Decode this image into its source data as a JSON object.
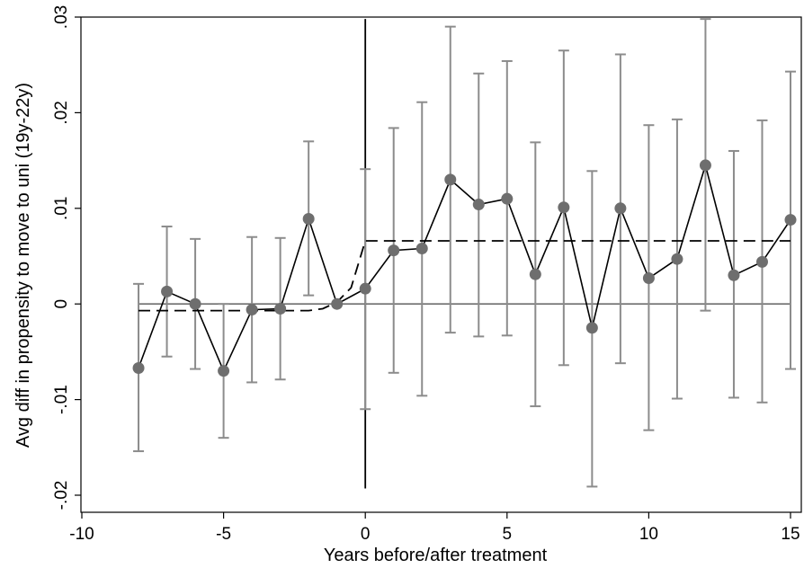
{
  "chart_data": {
    "type": "scatter",
    "title": "",
    "xlabel": "Years before/after treatment",
    "ylabel": "Avg diff in propensity to move to uni (19y-22y)",
    "xlim": [
      -10,
      15
    ],
    "ylim": [
      -0.02,
      0.03
    ],
    "xticks": [
      -10,
      -5,
      0,
      5,
      10,
      15
    ],
    "xtick_labels": [
      "-10",
      "-5",
      "0",
      "5",
      "10",
      "15"
    ],
    "yticks": [
      -0.02,
      -0.01,
      0,
      0.01,
      0.02,
      0.03
    ],
    "ytick_labels": [
      "-.02",
      "-.01",
      "0",
      ".01",
      ".02",
      ".03"
    ],
    "grid": false,
    "colors": {
      "points": "#6e6e6e",
      "connecting_line": "#000000",
      "error_bars": "#8c8c8c",
      "zero_line": "#6e6e6e",
      "treatment_line": "#000000",
      "fitted_step": "#000000"
    },
    "treatment_vline": {
      "x": 0,
      "y_from": -0.0193,
      "y_to": 0.0298
    },
    "zero_hline": {
      "y": 0,
      "x_from": -8,
      "x_to": 15
    },
    "fitted_step": {
      "x": [
        -8,
        -2,
        -1.5,
        -1,
        -0.5,
        0,
        15
      ],
      "y": [
        -0.0007,
        -0.0007,
        -0.0005,
        0.0002,
        0.0017,
        0.0066,
        0.0066
      ],
      "style": "dashed"
    },
    "series": [
      {
        "x": [
          -8,
          -7,
          -6,
          -5,
          -4,
          -3,
          -2,
          -1,
          0,
          1,
          2,
          3,
          4,
          5,
          6,
          7,
          8,
          9,
          10,
          11,
          12,
          13,
          14,
          15
        ],
        "values": [
          -0.0067,
          0.0013,
          0.0,
          -0.007,
          -0.0006,
          -0.0005,
          0.0089,
          0.0,
          0.0016,
          0.0056,
          0.0058,
          0.013,
          0.0104,
          0.011,
          0.0031,
          0.0101,
          -0.0025,
          0.01,
          0.0027,
          0.0047,
          0.0145,
          0.003,
          0.0044,
          0.0088
        ],
        "ci_lower": [
          -0.0154,
          -0.0055,
          -0.0068,
          -0.014,
          -0.0082,
          -0.0079,
          0.0009,
          null,
          -0.011,
          -0.0072,
          -0.0096,
          -0.003,
          -0.0034,
          -0.0033,
          -0.0107,
          -0.0064,
          -0.0191,
          -0.0062,
          -0.0132,
          -0.0099,
          -0.0007,
          -0.0098,
          -0.0103,
          -0.0068
        ],
        "ci_upper": [
          0.0021,
          0.0081,
          0.0068,
          0.0,
          0.007,
          0.0069,
          0.017,
          null,
          0.0141,
          0.0184,
          0.0211,
          0.029,
          0.0241,
          0.0254,
          0.0169,
          0.0265,
          0.0139,
          0.0261,
          0.0187,
          0.0193,
          0.0298,
          0.016,
          0.0192,
          0.0243
        ]
      }
    ]
  }
}
